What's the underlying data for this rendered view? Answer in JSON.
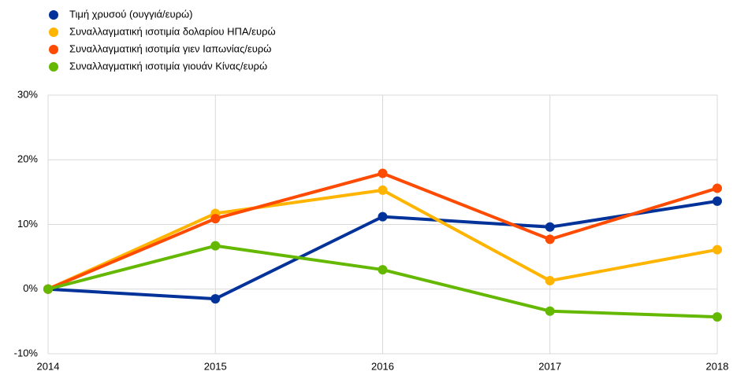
{
  "chart_data": {
    "type": "line",
    "x": [
      2014,
      2015,
      2016,
      2017,
      2018
    ],
    "xlim": [
      2014,
      2018
    ],
    "xticks": [
      2014,
      2015,
      2016,
      2017,
      2018
    ],
    "ylim": [
      -10,
      30
    ],
    "yticks": [
      {
        "value": -10,
        "label": "-10%"
      },
      {
        "value": 0,
        "label": "0%"
      },
      {
        "value": 10,
        "label": "10%"
      },
      {
        "value": 20,
        "label": "20%"
      },
      {
        "value": 30,
        "label": "30%"
      }
    ],
    "grid": true,
    "legend": "top-left",
    "series": [
      {
        "name": "Τιμή χρυσού (ουγγιά/ευρώ)",
        "color": "#003299",
        "values": [
          0,
          -1.5,
          11.2,
          9.6,
          13.6
        ]
      },
      {
        "name": "Συναλλαγματική ισοτιμία δολαρίου ΗΠΑ/ευρώ",
        "color": "#ffb400",
        "values": [
          0,
          11.7,
          15.3,
          1.3,
          6.1
        ]
      },
      {
        "name": "Συναλλαγματική ισοτιμία γιεν Ιαπωνίας/ευρώ",
        "color": "#ff4b00",
        "values": [
          0,
          10.9,
          17.9,
          7.7,
          15.6
        ]
      },
      {
        "name": "Συναλλαγματική ισοτιμία γιουάν Κίνας/ευρώ",
        "color": "#65b800",
        "values": [
          0,
          6.7,
          3.0,
          -3.4,
          -4.3
        ]
      }
    ]
  }
}
